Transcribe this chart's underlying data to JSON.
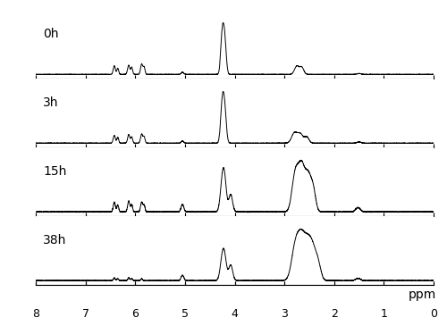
{
  "title": "",
  "xlabel": "ppm",
  "x_ticks": [
    8,
    7,
    6,
    5,
    4,
    3,
    2,
    1,
    0
  ],
  "labels": [
    "0h",
    "3h",
    "15h",
    "38h"
  ],
  "background_color": "#ffffff",
  "line_color": "#000000",
  "label_fontsize": 10,
  "tick_fontsize": 9,
  "ppm_label_fontsize": 10
}
